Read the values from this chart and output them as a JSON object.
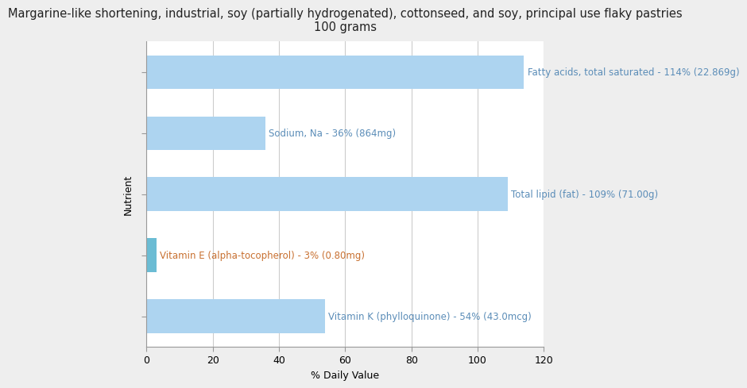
{
  "title": "Margarine-like shortening, industrial, soy (partially hydrogenated), cottonseed, and soy, principal use flaky pastries\n100 grams",
  "xlabel": "% Daily Value",
  "ylabel": "Nutrient",
  "background_color": "#eeeeee",
  "plot_bg_color": "#ffffff",
  "bar_color": "#add4f0",
  "bar_color_small": "#6bbcd4",
  "nutrients_order": [
    "Fatty acids, total saturated",
    "Sodium, Na",
    "Total lipid (fat)",
    "Vitamin E (alpha-tocopherol)",
    "Vitamin K (phylloquinone)"
  ],
  "values": [
    114,
    36,
    109,
    3,
    54
  ],
  "labels": [
    "Fatty acids, total saturated - 114% (22.869g)",
    "Sodium, Na - 36% (864mg)",
    "Total lipid (fat) - 109% (71.00g)",
    "Vitamin E (alpha-tocopherol) - 3% (0.80mg)",
    "Vitamin K (phylloquinone) - 54% (43.0mcg)"
  ],
  "label_colors": [
    "#5b8db8",
    "#5b8db8",
    "#5b8db8",
    "#c87030",
    "#5b8db8"
  ],
  "xlim": [
    0,
    120
  ],
  "xticks": [
    0,
    20,
    40,
    60,
    80,
    100,
    120
  ],
  "title_fontsize": 10.5,
  "label_fontsize": 8.5,
  "axis_label_fontsize": 9,
  "tick_fontsize": 9,
  "bar_height": 0.55
}
